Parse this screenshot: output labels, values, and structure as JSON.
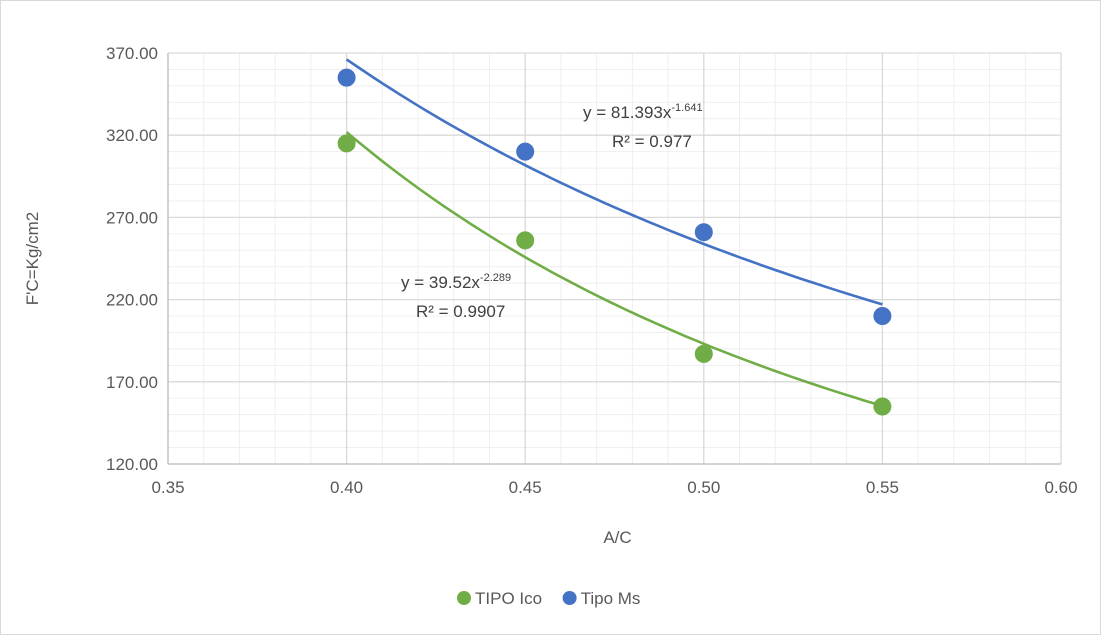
{
  "chart_data": {
    "type": "scatter",
    "xlabel": "A/C",
    "ylabel": "F'C=Kg/cm2",
    "xlim": [
      0.35,
      0.6
    ],
    "ylim": [
      120,
      370
    ],
    "x_ticks": [
      "0.35",
      "0.40",
      "0.45",
      "0.50",
      "0.55",
      "0.60"
    ],
    "y_ticks": [
      "120.00",
      "170.00",
      "220.00",
      "270.00",
      "320.00",
      "370.00"
    ],
    "grid": "major and minor",
    "legend_position": "bottom",
    "series": [
      {
        "name": "TIPO Ico",
        "color": "#70ad47",
        "x": [
          0.4,
          0.45,
          0.5,
          0.55
        ],
        "y": [
          315,
          256,
          187,
          155
        ],
        "trendline": {
          "kind": "power",
          "coef": 39.52,
          "exp": -2.289,
          "eq_base": "y = 39.52x",
          "eq_exp": "-2.289",
          "r2_text": "R² = 0.9907"
        }
      },
      {
        "name": "Tipo Ms",
        "color": "#4472c4",
        "x": [
          0.4,
          0.45,
          0.5,
          0.55
        ],
        "y": [
          355,
          310,
          261,
          210
        ],
        "trendline": {
          "kind": "power",
          "coef": 81.393,
          "exp": -1.641,
          "eq_base": "y = 81.393x",
          "eq_exp": "-1.641",
          "r2_text": "R² = 0.977"
        }
      }
    ]
  }
}
